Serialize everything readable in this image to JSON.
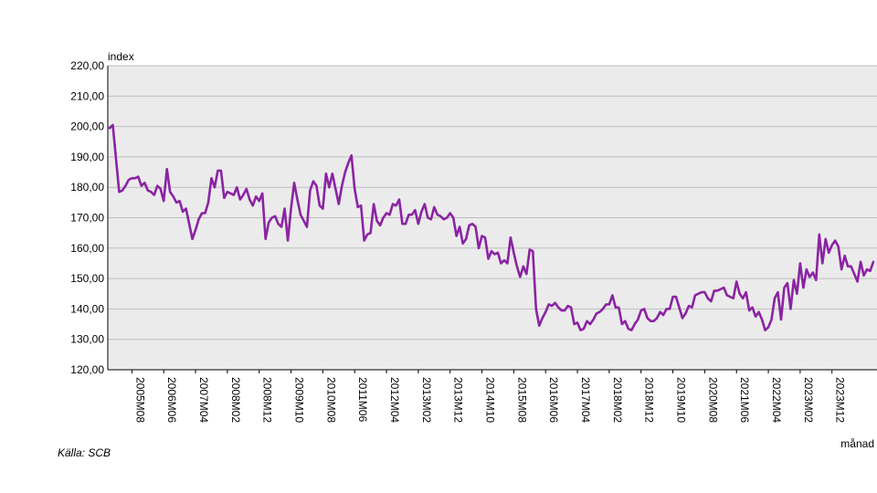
{
  "chart_data": {
    "type": "line",
    "ylabel": "index",
    "xlabel": "månad",
    "ylim": [
      120,
      220
    ],
    "yticks": [
      "120,00",
      "130,00",
      "140,00",
      "150,00",
      "160,00",
      "170,00",
      "180,00",
      "190,00",
      "200,00",
      "210,00",
      "220,00"
    ],
    "xticks": [
      "2005M08",
      "2006M06",
      "2007M04",
      "2008M02",
      "2008M12",
      "2009M10",
      "2010M08",
      "2011M06",
      "2012M04",
      "2013M02",
      "2013M12",
      "2014M10",
      "2015M08",
      "2016M06",
      "2017M04",
      "2018M02",
      "2018M12",
      "2019M10",
      "2020M08",
      "2021M06",
      "2022M04",
      "2023M02",
      "2023M12"
    ],
    "grid": true,
    "legend": "none",
    "colors": {
      "line": "#8B23A3",
      "plot_bg": "#EBEBEB",
      "grid": "#BEBEBE"
    },
    "x_start": "2005M01",
    "series": [
      {
        "values": [
          199.5,
          200.5,
          189.5,
          178.5,
          179,
          180.5,
          182.5,
          183,
          183,
          183.5,
          180.5,
          181.5,
          179,
          178.5,
          177.5,
          180.5,
          179.5,
          175.5,
          186,
          178.5,
          177,
          175,
          175.5,
          172,
          173,
          168,
          163,
          166,
          169.5,
          171.5,
          171.5,
          175,
          183,
          180,
          185.5,
          185.5,
          176.5,
          178.5,
          178,
          177.5,
          180,
          176,
          177.5,
          179.5,
          176,
          174,
          177,
          175.5,
          178,
          163,
          168.5,
          170,
          170.5,
          168,
          167,
          173,
          162.5,
          173,
          181.5,
          176,
          171,
          169,
          167,
          179,
          182,
          180.5,
          174,
          173,
          184.5,
          180,
          184.5,
          179.5,
          174.5,
          180.5,
          185,
          188,
          190.5,
          179.5,
          173.5,
          174,
          162.5,
          164.5,
          165,
          174.5,
          169,
          167.5,
          170,
          171.5,
          171,
          174.5,
          174,
          176,
          168,
          168,
          171,
          171,
          172.5,
          168,
          172,
          174.5,
          170,
          169.5,
          173.5,
          171,
          170.5,
          169.5,
          170,
          171.5,
          170,
          164,
          167,
          161.5,
          163,
          167.5,
          168,
          167,
          160,
          164,
          163.5,
          156.5,
          159,
          158,
          158.5,
          155,
          156,
          155,
          163.5,
          158.5,
          154,
          150.5,
          154,
          151.5,
          159.5,
          159,
          140,
          134.5,
          137,
          139,
          141.5,
          141,
          142,
          140.5,
          139.5,
          139.5,
          141,
          140.5,
          135,
          135.5,
          133,
          133.5,
          136,
          135,
          136.5,
          138.5,
          139,
          140,
          141.5,
          141.5,
          144.5,
          140.5,
          140.5,
          135,
          136,
          133.5,
          133,
          135,
          136.5,
          139.5,
          140,
          137,
          136,
          136,
          137,
          139,
          138,
          140,
          140,
          144,
          144,
          140.5,
          137,
          138.5,
          141,
          140.5,
          144.5,
          145,
          145.5,
          145.5,
          143.5,
          142.5,
          146,
          146,
          146.5,
          147,
          144.5,
          144,
          143.5,
          149,
          145,
          143.5,
          145.5,
          139.5,
          140.5,
          137.5,
          139,
          136.5,
          133,
          134,
          136.5,
          143.5,
          145.5,
          136.5,
          147,
          148.5,
          140,
          149.5,
          145,
          155,
          147,
          153,
          150.5,
          152,
          149.5,
          164.5,
          155,
          163,
          158.5,
          161,
          162.5,
          160.5,
          153,
          157.5,
          154,
          154,
          151.5,
          149,
          155.5,
          151,
          153,
          152.5,
          155.5
        ]
      }
    ]
  },
  "source": "Källa: SCB"
}
